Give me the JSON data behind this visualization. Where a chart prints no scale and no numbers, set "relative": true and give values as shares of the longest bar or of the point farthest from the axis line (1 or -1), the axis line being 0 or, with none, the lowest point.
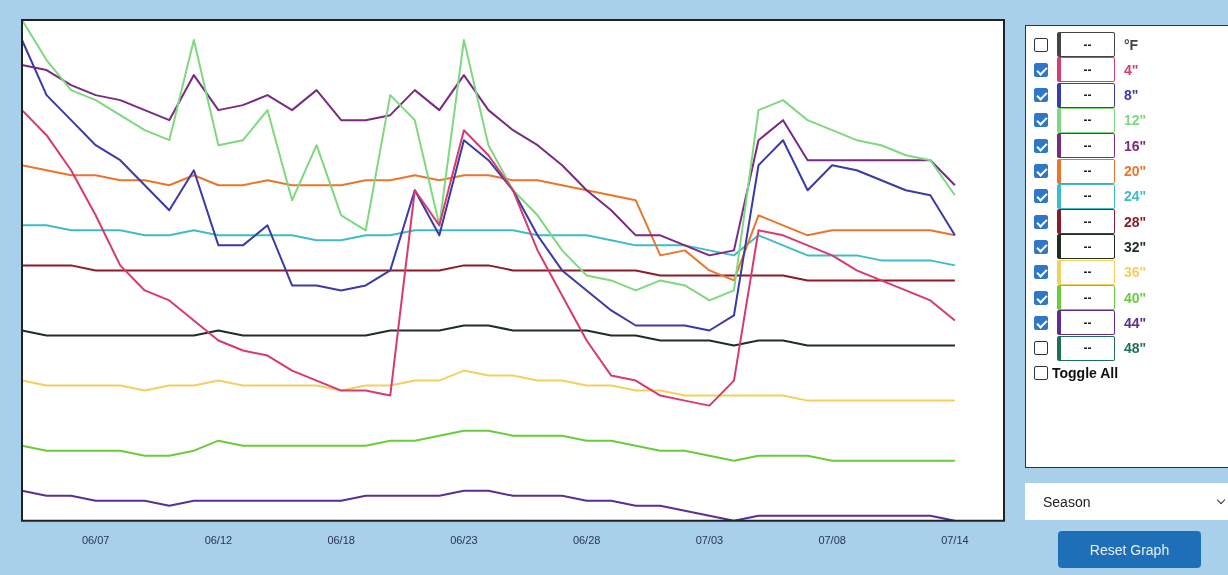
{
  "chart_data": {
    "type": "line",
    "relative": true,
    "legend": "right",
    "categories": [
      null,
      null,
      null,
      "06/07",
      null,
      null,
      null,
      null,
      "06/12",
      null,
      null,
      null,
      null,
      "06/18",
      null,
      null,
      null,
      null,
      "06/23",
      null,
      null,
      null,
      null,
      "06/28",
      null,
      null,
      null,
      null,
      "07/03",
      null,
      null,
      null,
      null,
      "07/08",
      null,
      null,
      null,
      null,
      "07/14",
      null,
      null
    ],
    "series": [
      {
        "name": "°F",
        "color": "#444444",
        "values": [
          null,
          null,
          null,
          null,
          null,
          null,
          null,
          null,
          null,
          null,
          null,
          null,
          null,
          null,
          null,
          null,
          null,
          null,
          null,
          null,
          null,
          null,
          null,
          null,
          null,
          null,
          null,
          null,
          null,
          null,
          null,
          null,
          null,
          null,
          null,
          null,
          null,
          null,
          null,
          null,
          null
        ]
      },
      {
        "name": "4\"",
        "color": "#d63a6e",
        "values": [
          0.82,
          0.77,
          0.7,
          0.61,
          0.51,
          0.46,
          0.44,
          0.4,
          0.36,
          0.34,
          0.33,
          0.3,
          0.28,
          0.26,
          0.26,
          0.25,
          0.66,
          0.59,
          0.78,
          0.73,
          0.66,
          0.54,
          0.45,
          0.36,
          0.29,
          0.28,
          0.25,
          0.24,
          0.23,
          0.28,
          0.58,
          0.57,
          0.55,
          0.53,
          0.5,
          0.48,
          0.46,
          0.44,
          0.4,
          null,
          null
        ]
      },
      {
        "name": "8\"",
        "color": "#3a3aa8",
        "values": [
          0.96,
          0.85,
          0.8,
          0.75,
          0.72,
          0.67,
          0.62,
          0.7,
          0.55,
          0.55,
          0.59,
          0.47,
          0.47,
          0.46,
          0.47,
          0.5,
          0.66,
          0.57,
          0.76,
          0.72,
          0.66,
          0.57,
          0.5,
          0.46,
          0.42,
          0.39,
          0.39,
          0.39,
          0.38,
          0.41,
          0.71,
          0.76,
          0.66,
          0.71,
          0.7,
          0.68,
          0.66,
          0.65,
          0.57,
          null,
          null
        ]
      },
      {
        "name": "12\"",
        "color": "#7fd87f",
        "values": [
          1.0,
          0.92,
          0.86,
          0.84,
          0.81,
          0.78,
          0.76,
          0.96,
          0.75,
          0.76,
          0.82,
          0.64,
          0.75,
          0.61,
          0.58,
          0.85,
          0.8,
          0.59,
          0.96,
          0.75,
          0.66,
          0.61,
          0.54,
          0.49,
          0.48,
          0.46,
          0.48,
          0.47,
          0.44,
          0.46,
          0.82,
          0.84,
          0.8,
          0.78,
          0.76,
          0.75,
          0.73,
          0.72,
          0.65,
          null,
          null
        ]
      },
      {
        "name": "16\"",
        "color": "#7a2a80",
        "values": [
          0.91,
          0.9,
          0.87,
          0.85,
          0.84,
          0.82,
          0.8,
          0.89,
          0.82,
          0.83,
          0.85,
          0.82,
          0.86,
          0.8,
          0.8,
          0.81,
          0.86,
          0.82,
          0.89,
          0.82,
          0.78,
          0.75,
          0.71,
          0.66,
          0.62,
          0.57,
          0.57,
          0.55,
          0.53,
          0.54,
          0.76,
          0.8,
          0.72,
          0.72,
          0.72,
          0.72,
          0.72,
          0.72,
          0.67,
          null,
          null
        ]
      },
      {
        "name": "20\"",
        "color": "#e8762e",
        "values": [
          0.71,
          0.7,
          0.69,
          0.69,
          0.68,
          0.68,
          0.67,
          0.69,
          0.67,
          0.67,
          0.68,
          0.67,
          0.67,
          0.67,
          0.68,
          0.68,
          0.69,
          0.68,
          0.69,
          0.69,
          0.68,
          0.68,
          0.67,
          0.66,
          0.65,
          0.64,
          0.53,
          0.54,
          0.5,
          0.48,
          0.61,
          0.59,
          0.57,
          0.58,
          0.58,
          0.58,
          0.58,
          0.58,
          0.57,
          null,
          null
        ]
      },
      {
        "name": "24\"",
        "color": "#3fbcc8",
        "values": [
          0.59,
          0.59,
          0.58,
          0.58,
          0.58,
          0.57,
          0.57,
          0.58,
          0.57,
          0.57,
          0.57,
          0.57,
          0.56,
          0.56,
          0.57,
          0.57,
          0.58,
          0.58,
          0.58,
          0.58,
          0.58,
          0.57,
          0.57,
          0.57,
          0.56,
          0.55,
          0.55,
          0.55,
          0.54,
          0.53,
          0.57,
          0.55,
          0.53,
          0.53,
          0.53,
          0.52,
          0.52,
          0.52,
          0.51,
          null,
          null
        ]
      },
      {
        "name": "28\"",
        "color": "#8a1c2a",
        "values": [
          0.51,
          0.51,
          0.51,
          0.5,
          0.5,
          0.5,
          0.5,
          0.5,
          0.5,
          0.5,
          0.5,
          0.5,
          0.5,
          0.5,
          0.5,
          0.5,
          0.5,
          0.5,
          0.51,
          0.51,
          0.5,
          0.5,
          0.5,
          0.5,
          0.5,
          0.5,
          0.49,
          0.49,
          0.49,
          0.49,
          0.49,
          0.49,
          0.48,
          0.48,
          0.48,
          0.48,
          0.48,
          0.48,
          0.48,
          null,
          null
        ]
      },
      {
        "name": "32\"",
        "color": "#1e2e22",
        "values": [
          0.38,
          0.37,
          0.37,
          0.37,
          0.37,
          0.37,
          0.37,
          0.37,
          0.38,
          0.37,
          0.37,
          0.37,
          0.37,
          0.37,
          0.37,
          0.38,
          0.38,
          0.38,
          0.39,
          0.39,
          0.38,
          0.38,
          0.38,
          0.38,
          0.37,
          0.37,
          0.36,
          0.36,
          0.36,
          0.35,
          0.36,
          0.36,
          0.35,
          0.35,
          0.35,
          0.35,
          0.35,
          0.35,
          0.35,
          null,
          null
        ]
      },
      {
        "name": "36\"",
        "color": "#f2d060",
        "values": [
          0.28,
          0.27,
          0.27,
          0.27,
          0.27,
          0.26,
          0.27,
          0.27,
          0.28,
          0.27,
          0.27,
          0.27,
          0.27,
          0.26,
          0.27,
          0.27,
          0.28,
          0.28,
          0.3,
          0.29,
          0.29,
          0.28,
          0.28,
          0.27,
          0.27,
          0.26,
          0.26,
          0.25,
          0.25,
          0.25,
          0.25,
          0.25,
          0.24,
          0.24,
          0.24,
          0.24,
          0.24,
          0.24,
          0.24,
          null,
          null
        ]
      },
      {
        "name": "40\"",
        "color": "#6acb3c",
        "values": [
          0.15,
          0.14,
          0.14,
          0.14,
          0.14,
          0.13,
          0.13,
          0.14,
          0.16,
          0.15,
          0.15,
          0.15,
          0.15,
          0.15,
          0.15,
          0.16,
          0.16,
          0.17,
          0.18,
          0.18,
          0.17,
          0.17,
          0.17,
          0.16,
          0.16,
          0.15,
          0.14,
          0.14,
          0.13,
          0.12,
          0.13,
          0.13,
          0.13,
          0.12,
          0.12,
          0.12,
          0.12,
          0.12,
          0.12,
          null,
          null
        ]
      },
      {
        "name": "44\"",
        "color": "#5c2e94",
        "values": [
          0.06,
          0.05,
          0.05,
          0.04,
          0.04,
          0.04,
          0.03,
          0.04,
          0.04,
          0.04,
          0.04,
          0.04,
          0.04,
          0.04,
          0.05,
          0.05,
          0.05,
          0.05,
          0.06,
          0.06,
          0.05,
          0.05,
          0.05,
          0.04,
          0.04,
          0.03,
          0.03,
          0.02,
          0.01,
          0.0,
          0.01,
          0.01,
          0.01,
          0.01,
          0.01,
          0.01,
          0.01,
          0.01,
          0.0,
          null,
          null
        ]
      },
      {
        "name": "48\"",
        "color": "#1f6e58",
        "values": [
          null,
          null,
          null,
          null,
          null,
          null,
          null,
          null,
          null,
          null,
          null,
          null,
          null,
          null,
          null,
          null,
          null,
          null,
          null,
          null,
          null,
          null,
          null,
          null,
          null,
          null,
          null,
          null,
          null,
          null,
          null,
          null,
          null,
          null,
          null,
          null,
          null,
          null,
          null,
          null,
          null
        ]
      }
    ],
    "annotations": [
      "--",
      "Toggle All",
      "Season",
      "Reset Graph"
    ]
  }
}
